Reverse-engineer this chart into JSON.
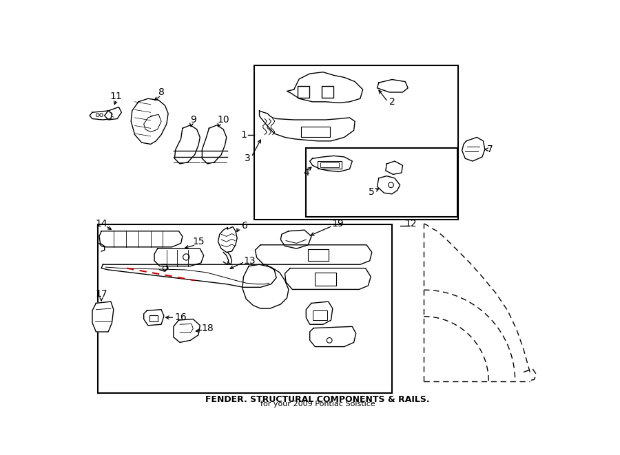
{
  "title": "FENDER. STRUCTURAL COMPONENTS & RAILS.",
  "subtitle": "for your 2009 Pontiac Solstice",
  "bg_color": "#ffffff",
  "line_color": "#000000",
  "red_line_color": "#cc0000",
  "fig_width": 9.0,
  "fig_height": 6.61
}
